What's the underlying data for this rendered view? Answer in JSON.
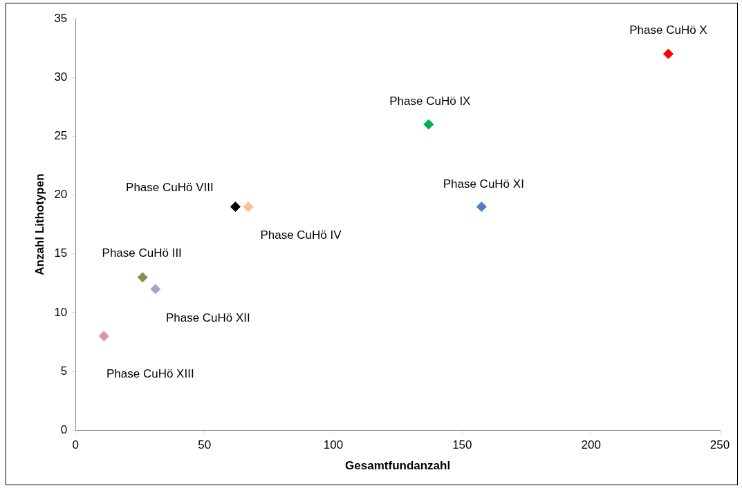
{
  "chart_data": {
    "type": "scatter",
    "xlabel": "Gesamtfundanzahl",
    "ylabel": "Anzahl Lithotypen",
    "xlim": [
      0,
      250
    ],
    "xticks": [
      0,
      50,
      100,
      150,
      200,
      250
    ],
    "ylim": [
      0,
      35
    ],
    "yticks": [
      0,
      5,
      10,
      15,
      20,
      25,
      30,
      35
    ],
    "marker": "diamond",
    "legend": false,
    "series": [
      {
        "name": "Phase CuHö X",
        "color": "#ff0000",
        "x": [
          230
        ],
        "values": [
          32
        ]
      },
      {
        "name": "Phase CuHö IX",
        "color": "#00b050",
        "x": [
          137
        ],
        "values": [
          26
        ]
      },
      {
        "name": "Phase CuHö XI",
        "color": "#4f81bd",
        "x": [
          157.5
        ],
        "values": [
          19
        ]
      },
      {
        "name": "Phase CuHö VIII",
        "color": "#000000",
        "x": [
          62
        ],
        "values": [
          19
        ]
      },
      {
        "name": "Phase CuHö IV",
        "color": "#fac090",
        "x": [
          67
        ],
        "values": [
          19
        ]
      },
      {
        "name": "Phase CuHö III",
        "color": "#8b8b5a",
        "x": [
          26
        ],
        "values": [
          13
        ]
      },
      {
        "name": "Phase CuHö XII",
        "color": "#b3a2c7",
        "x": [
          31
        ],
        "values": [
          12
        ]
      },
      {
        "name": "Phase CuHö XIII",
        "color": "#d99694",
        "x": [
          11
        ],
        "values": [
          8
        ]
      }
    ]
  }
}
